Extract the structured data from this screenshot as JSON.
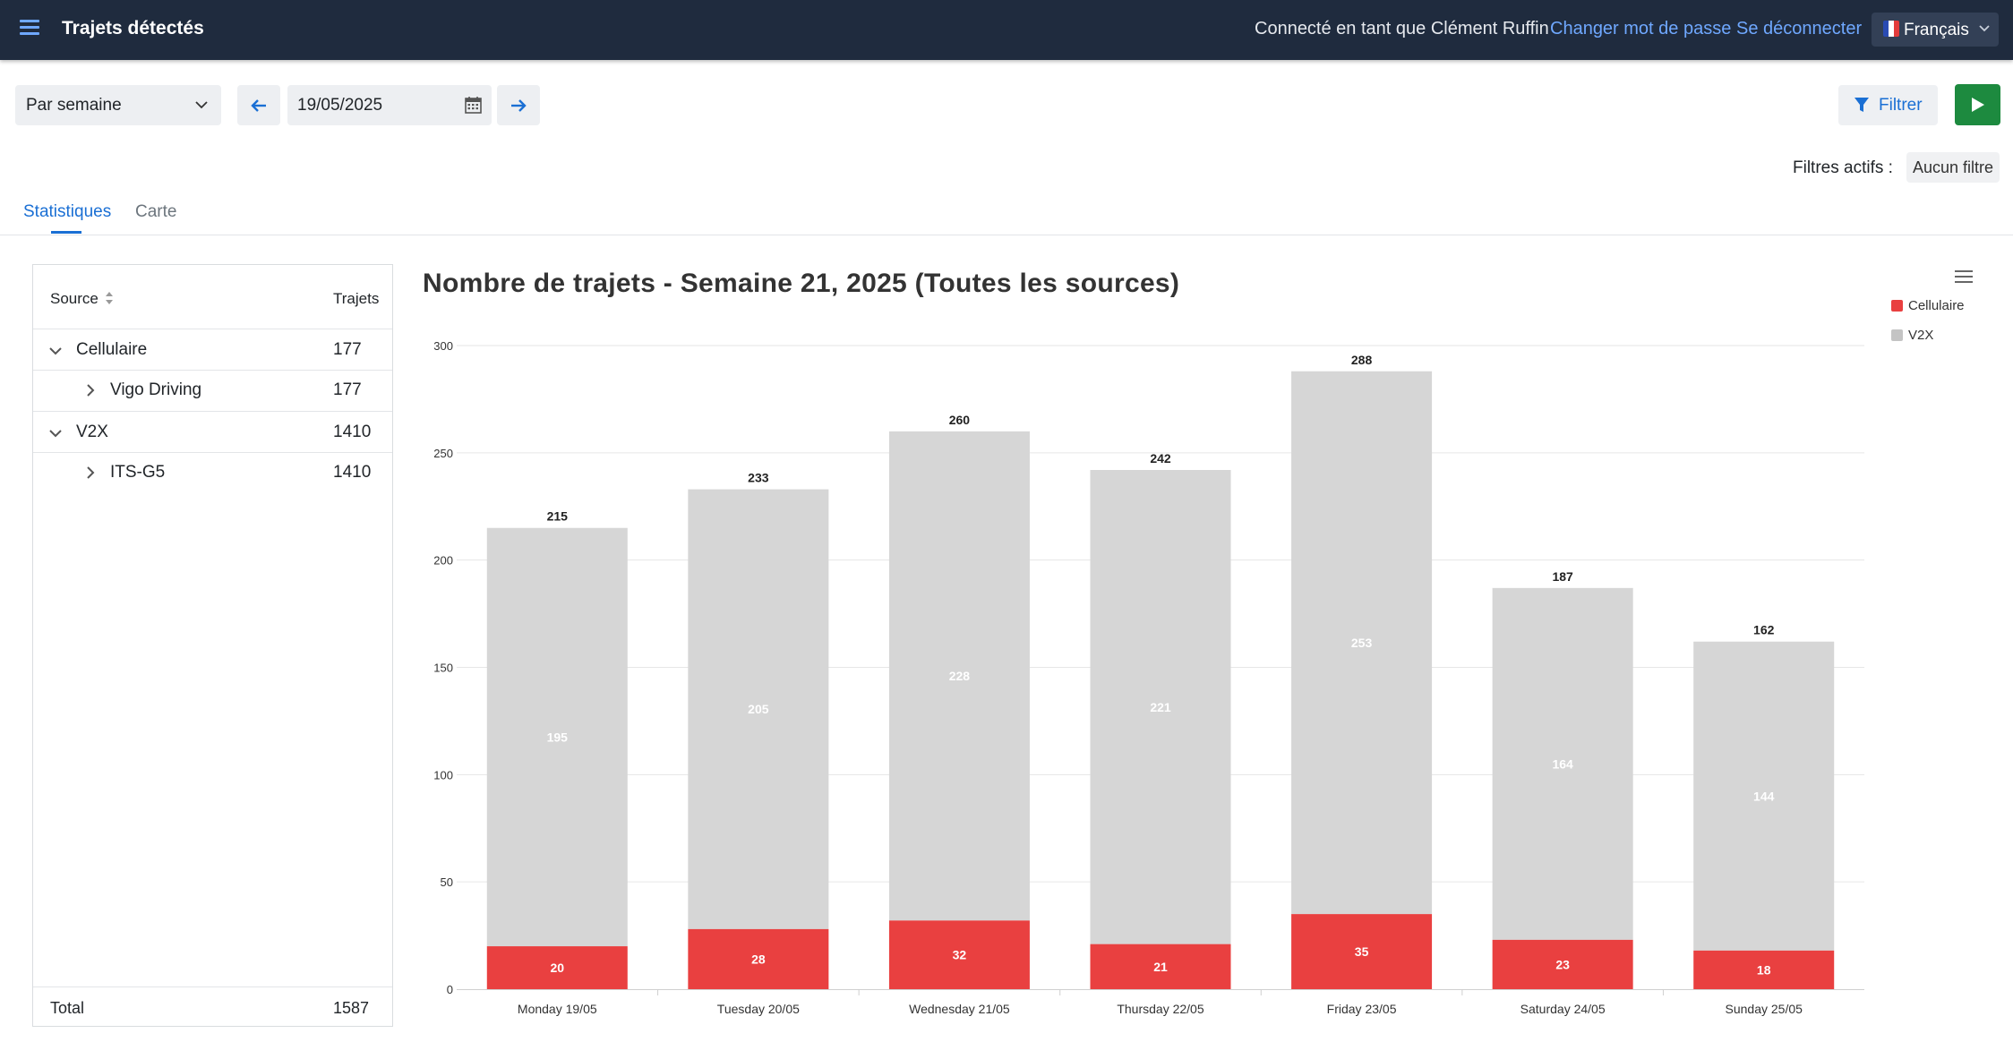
{
  "header": {
    "title": "Trajets détectés",
    "user_info": "Connecté en tant que Clément Ruffin",
    "change_password": "Changer mot de passe",
    "logout": "Se déconnecter",
    "language": "Français"
  },
  "toolbar": {
    "period": "Par semaine",
    "date": "19/05/2025",
    "filter_label": "Filtrer",
    "active_filters_label": "Filtres actifs :",
    "active_filters_value": "Aucun filtre"
  },
  "tabs": [
    {
      "label": "Statistiques",
      "active": true
    },
    {
      "label": "Carte",
      "active": false
    }
  ],
  "sources_table": {
    "col_source": "Source",
    "col_trips": "Trajets",
    "rows": [
      {
        "label": "Cellulaire",
        "value": "177"
      },
      {
        "label": "Vigo Driving",
        "value": "177"
      },
      {
        "label": "V2X",
        "value": "1410"
      },
      {
        "label": "ITS-G5",
        "value": "1410"
      }
    ],
    "total_label": "Total",
    "total_value": "1587"
  },
  "colors": {
    "cellulaire": "#e94040",
    "v2x": "#d6d6d6",
    "accent": "#1a6fd4",
    "header_bg": "#1f2b3e"
  },
  "chart_data": {
    "type": "bar",
    "stacked": true,
    "title": "Nombre de trajets - Semaine 21, 2025 (Toutes les sources)",
    "categories": [
      "Monday 19/05",
      "Tuesday 20/05",
      "Wednesday 21/05",
      "Thursday 22/05",
      "Friday 23/05",
      "Saturday 24/05",
      "Sunday 25/05"
    ],
    "series": [
      {
        "name": "Cellulaire",
        "values": [
          20,
          28,
          32,
          21,
          35,
          23,
          18
        ]
      },
      {
        "name": "V2X",
        "values": [
          195,
          205,
          228,
          221,
          253,
          164,
          144
        ]
      }
    ],
    "totals": [
      215,
      233,
      260,
      242,
      288,
      187,
      162
    ],
    "ylim": [
      0,
      300
    ],
    "yticks": [
      0,
      50,
      100,
      150,
      200,
      250,
      300
    ],
    "grid": true,
    "legend": "top-right"
  }
}
